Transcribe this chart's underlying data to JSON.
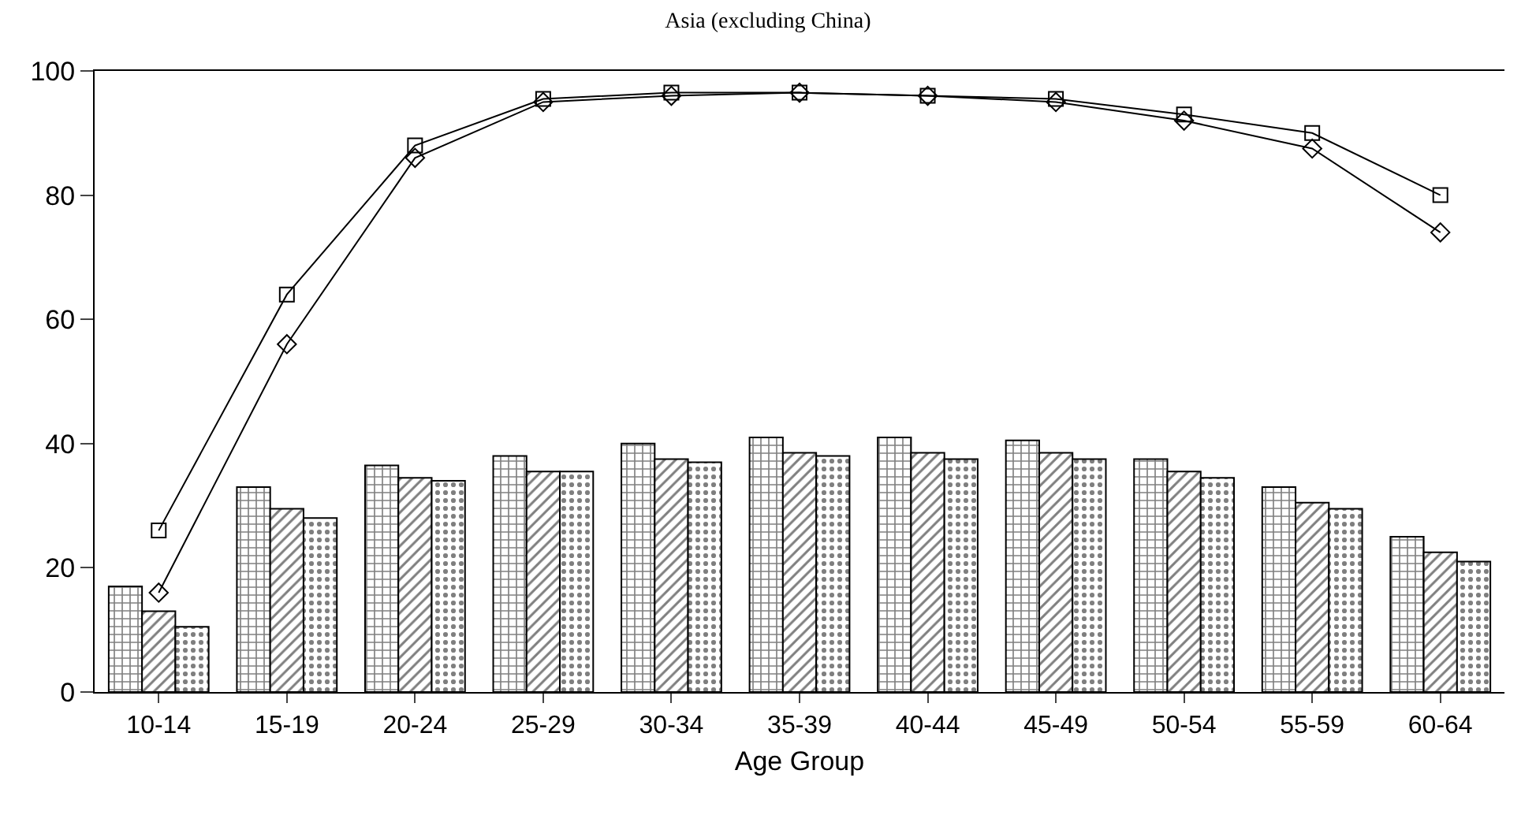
{
  "chart_data": {
    "type": "bar",
    "title": "Asia (excluding China)",
    "xlabel": "Age Group",
    "categories": [
      "10-14",
      "15-19",
      "20-24",
      "25-29",
      "30-34",
      "35-39",
      "40-44",
      "45-49",
      "50-54",
      "55-59",
      "60-64"
    ],
    "series": [
      {
        "color": "#000000",
        "values": [
          17,
          33,
          36.5,
          38,
          40,
          41,
          41,
          40.5,
          37.5,
          33,
          25
        ]
      },
      {
        "color": "#000000",
        "values": [
          13,
          29.5,
          34.5,
          35.5,
          37.5,
          38.5,
          38.5,
          38.5,
          35.5,
          30.5,
          22.5
        ]
      },
      {
        "color": "#000000",
        "values": [
          10.5,
          28,
          34,
          35.5,
          37,
          38,
          37.5,
          37.5,
          34.5,
          29.5,
          21
        ]
      },
      {
        "type": "line",
        "color": "#000000",
        "marker": "square",
        "values": [
          26,
          64,
          88,
          95.5,
          96.5,
          96.5,
          96,
          95.5,
          93,
          90,
          80
        ]
      },
      {
        "type": "line",
        "color": "#000000",
        "marker": "diamond",
        "values": [
          16,
          56,
          86,
          95,
          96,
          96.5,
          96,
          95,
          92,
          87.5,
          74
        ]
      }
    ],
    "ylim": [
      0,
      100
    ],
    "yticks": [
      0,
      20,
      40,
      60,
      80,
      100
    ]
  }
}
